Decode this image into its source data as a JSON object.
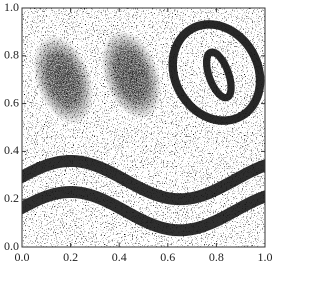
{
  "chart_data": {
    "type": "scatter",
    "xlim": [
      0,
      1
    ],
    "ylim": [
      0,
      1
    ],
    "xticks": [
      {
        "value": 0,
        "label": "0.0"
      },
      0.2,
      0.4,
      0.6,
      0.8,
      {
        "value": 1,
        "label": "1.0"
      }
    ],
    "yticks": [
      {
        "value": 0,
        "label": "0.0"
      },
      0.2,
      0.4,
      0.6,
      0.8,
      {
        "value": 1,
        "label": "1.0"
      }
    ],
    "color": "#111111",
    "blobs": [
      {
        "cx": 0.17,
        "cy": 0.7,
        "sx": 0.07,
        "sy": 0.12,
        "angle": -20
      },
      {
        "cx": 0.45,
        "cy": 0.72,
        "sx": 0.07,
        "sy": 0.12,
        "angle": -20
      }
    ],
    "rings": [
      {
        "cx": 0.8,
        "cy": 0.73,
        "rx": 0.17,
        "ry": 0.21,
        "angle": -30,
        "width": 0.035
      },
      {
        "cx": 0.81,
        "cy": 0.72,
        "rx": 0.04,
        "ry": 0.1,
        "angle": -20,
        "width": 0.03
      }
    ],
    "bands": [
      {
        "center": 0.28,
        "amplitude": 0.08,
        "period": 0.9,
        "peak": 0.2,
        "width": 0.05
      },
      {
        "center": 0.15,
        "amplitude": 0.08,
        "period": 0.9,
        "peak": 0.2,
        "width": 0.05
      }
    ]
  }
}
